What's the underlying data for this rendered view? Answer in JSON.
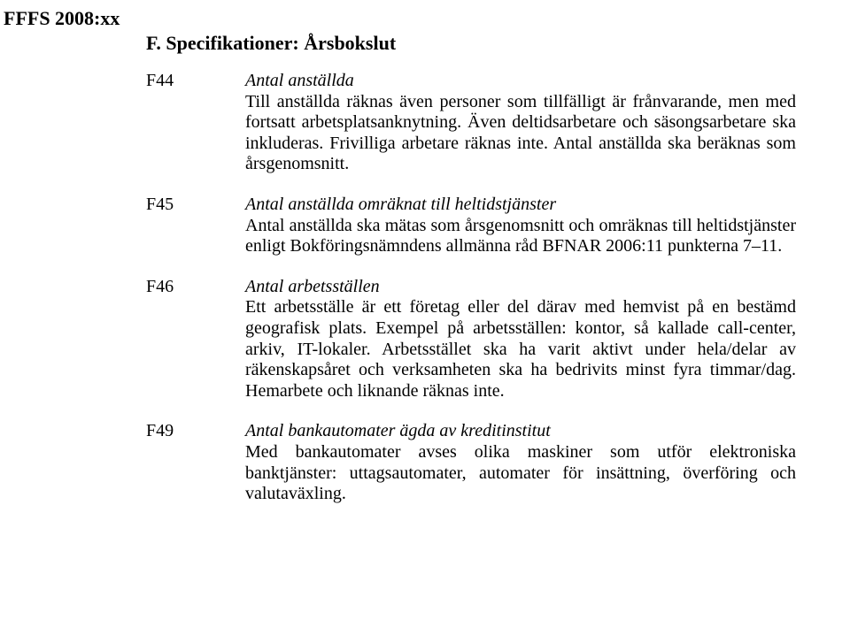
{
  "header": "FFFS 2008:xx",
  "section_title": "F. Specifikationer: Årsbokslut",
  "entries": [
    {
      "label": "F44",
      "title": "Antal anställda",
      "body": "Till anställda räknas även personer som tillfälligt är frånvarande, men med fortsatt arbetsplatsanknytning. Även deltidsarbetare och säsongsarbetare ska inkluderas. Frivilliga arbetare räknas inte. Antal anställda ska beräknas som årsgenomsnitt."
    },
    {
      "label": "F45",
      "title": "Antal anställda omräknat till heltidstjänster",
      "body": "Antal anställda ska mätas som årsgenomsnitt och omräknas till heltidstjänster enligt Bokföringsnämndens allmänna råd BFNAR 2006:11 punkterna 7–11."
    },
    {
      "label": "F46",
      "title": "Antal arbetsställen",
      "body": "Ett arbetsställe är ett företag eller del därav med hemvist på en bestämd geografisk plats. Exempel på arbetsställen: kontor, så kallade call-center, arkiv, IT-lokaler. Arbetsstället ska ha varit aktivt under hela/delar av räkenskapsåret och verksamheten ska ha bedrivits minst fyra timmar/dag. Hemarbete och liknande räknas inte."
    },
    {
      "label": "F49",
      "title": "Antal bankautomater ägda av kreditinstitut",
      "body": "Med bankautomater avses olika maskiner som utför elektroniska banktjänster: uttagsautomater, automater för insättning, överföring och valutaväxling."
    }
  ]
}
